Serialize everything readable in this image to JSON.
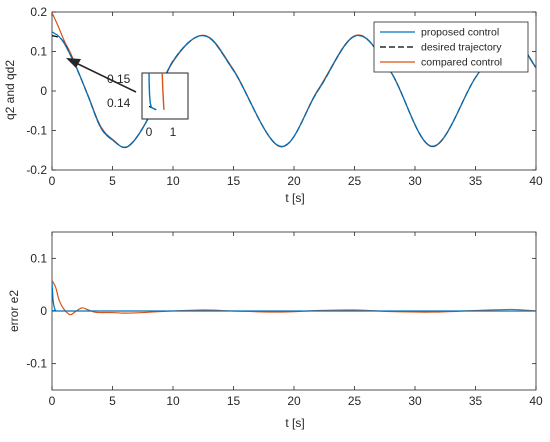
{
  "chart_data": [
    {
      "type": "line",
      "xlabel": "t [s]",
      "ylabel": "q2 and qd2",
      "xlim": [
        0,
        40
      ],
      "ylim": [
        -0.2,
        0.2
      ],
      "xticks": [
        0,
        5,
        10,
        15,
        20,
        25,
        30,
        35,
        40
      ],
      "xtick_labels": [
        "0",
        "5",
        "10",
        "15",
        "20",
        "25",
        "30",
        "35",
        "40"
      ],
      "yticks": [
        -0.2,
        -0.1,
        0,
        0.1,
        0.2
      ],
      "ytick_labels": [
        "-0.2",
        "-0.1",
        "0",
        "0.1",
        "0.2"
      ],
      "legend_position": "top-right",
      "series": [
        {
          "name": "proposed control",
          "color": "#0072BD",
          "style": "solid",
          "x": [
            0,
            0.1,
            0.25,
            0.5,
            1,
            2,
            3,
            4,
            5,
            6.28,
            8,
            10,
            12.57,
            15,
            18.85,
            22,
            25.13,
            28,
            31.42,
            35,
            37.7,
            40
          ],
          "y": [
            0.15,
            0.148,
            0.145,
            0.14,
            0.121,
            0.06,
            -0.014,
            -0.091,
            -0.124,
            -0.14,
            -0.066,
            0.076,
            0.14,
            0.052,
            -0.14,
            0.002,
            0.14,
            0.048,
            -0.14,
            0.034,
            0.14,
            0.06
          ]
        },
        {
          "name": "desired trajectory",
          "color": "#000000",
          "style": "dashed",
          "x": [
            0,
            0.5,
            1,
            2,
            3,
            4,
            5,
            6.28,
            8,
            10,
            12.57,
            15,
            18.85,
            22,
            25.13,
            28,
            31.42,
            35,
            37.7,
            40
          ],
          "y": [
            0.14,
            0.136,
            0.122,
            0.06,
            -0.014,
            -0.091,
            -0.124,
            -0.14,
            -0.066,
            0.076,
            0.14,
            0.052,
            -0.14,
            0.002,
            0.14,
            0.048,
            -0.14,
            0.034,
            0.14,
            0.06
          ]
        },
        {
          "name": "compared control",
          "color": "#D95319",
          "style": "solid",
          "x": [
            0,
            0.5,
            1,
            1.5,
            2,
            3,
            4,
            5,
            6.28,
            8,
            10,
            12.57,
            15,
            18.85,
            22,
            25.13,
            28,
            31.42,
            35,
            37.7,
            40
          ],
          "y": [
            0.198,
            0.165,
            0.128,
            0.098,
            0.062,
            -0.013,
            -0.088,
            -0.122,
            -0.141,
            -0.067,
            0.074,
            0.141,
            0.054,
            -0.141,
            0.004,
            0.141,
            0.049,
            -0.141,
            0.034,
            0.141,
            0.058
          ]
        }
      ],
      "annotation": {
        "arrow_target": {
          "x": 1.2,
          "y": 0.05
        },
        "inset": {
          "xlim": [
            0,
            1
          ],
          "ylim": [
            0.135,
            0.155
          ],
          "xtick_labels": [
            "0",
            "1"
          ],
          "ytick_labels": [
            "0.15",
            "0.14"
          ],
          "proposed": {
            "x": [
              0,
              0.01,
              0.02,
              0.05,
              0.1,
              0.2,
              0.3
            ],
            "y": [
              0.155,
              0.15,
              0.146,
              0.142,
              0.14,
              0.1395,
              0.139
            ]
          },
          "desired": {
            "x": [
              0,
              0.3
            ],
            "y": [
              0.1405,
              0.139
            ]
          },
          "compared": {
            "x": [
              0.55,
              0.58,
              0.62
            ],
            "y": [
              0.155,
              0.147,
              0.139
            ]
          }
        }
      }
    },
    {
      "type": "line",
      "xlabel": "t [s]",
      "ylabel": "error e2",
      "xlim": [
        0,
        40
      ],
      "ylim": [
        -0.15,
        0.15
      ],
      "xticks": [
        0,
        5,
        10,
        15,
        20,
        25,
        30,
        35,
        40
      ],
      "xtick_labels": [
        "0",
        "5",
        "10",
        "15",
        "20",
        "25",
        "30",
        "35",
        "40"
      ],
      "yticks": [
        -0.1,
        0,
        0.1
      ],
      "ytick_labels": [
        "-0.1",
        "0",
        "0.1"
      ],
      "series": [
        {
          "name": "proposed control",
          "color": "#0072BD",
          "style": "solid",
          "x": [
            0,
            0.05,
            0.1,
            0.2,
            0.3,
            0.5,
            40
          ],
          "y": [
            0.055,
            0.035,
            0.018,
            0.006,
            0.001,
            0,
            0
          ]
        },
        {
          "name": "compared control",
          "color": "#D95319",
          "style": "solid",
          "x": [
            0,
            0.3,
            0.6,
            1,
            1.5,
            2,
            2.5,
            3,
            3.5,
            4,
            5,
            6,
            7.5,
            9,
            12.5,
            15,
            19,
            22,
            25,
            28,
            31.5,
            35,
            38,
            40
          ],
          "y": [
            0.058,
            0.045,
            0.02,
            0.003,
            -0.007,
            0.0,
            0.006,
            0.002,
            -0.002,
            -0.003,
            -0.003,
            -0.004,
            -0.003,
            -0.001,
            0.002,
            0.0,
            -0.002,
            0.001,
            0.002,
            -0.001,
            -0.002,
            0.001,
            0.003,
            0.0
          ]
        }
      ]
    }
  ]
}
